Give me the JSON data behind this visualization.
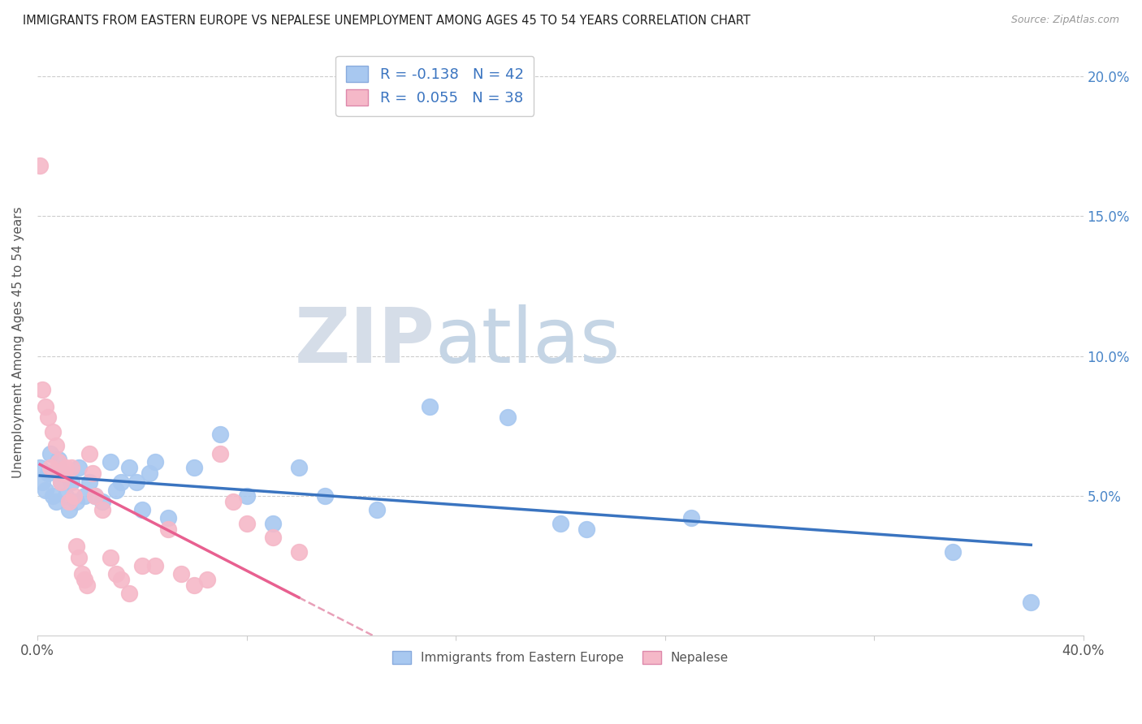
{
  "title": "IMMIGRANTS FROM EASTERN EUROPE VS NEPALESE UNEMPLOYMENT AMONG AGES 45 TO 54 YEARS CORRELATION CHART",
  "source": "Source: ZipAtlas.com",
  "ylabel": "Unemployment Among Ages 45 to 54 years",
  "xlim": [
    0.0,
    0.4
  ],
  "ylim": [
    0.0,
    0.21
  ],
  "yticks": [
    0.05,
    0.1,
    0.15,
    0.2
  ],
  "ytick_labels": [
    "5.0%",
    "10.0%",
    "15.0%",
    "20.0%"
  ],
  "legend_blue_label": "R = -0.138   N = 42",
  "legend_pink_label": "R =  0.055   N = 38",
  "legend_bottom_blue": "Immigrants from Eastern Europe",
  "legend_bottom_pink": "Nepalese",
  "blue_color": "#a8c8f0",
  "pink_color": "#f5b8c8",
  "blue_line_color": "#3a74c0",
  "pink_line_color": "#e86090",
  "pink_dashed_color": "#e8a0b8",
  "blue_x": [
    0.001,
    0.002,
    0.003,
    0.004,
    0.005,
    0.006,
    0.007,
    0.008,
    0.009,
    0.01,
    0.011,
    0.012,
    0.013,
    0.015,
    0.016,
    0.018,
    0.02,
    0.022,
    0.025,
    0.028,
    0.03,
    0.032,
    0.035,
    0.038,
    0.04,
    0.043,
    0.045,
    0.05,
    0.06,
    0.07,
    0.08,
    0.09,
    0.1,
    0.11,
    0.13,
    0.15,
    0.18,
    0.2,
    0.21,
    0.25,
    0.35,
    0.38
  ],
  "blue_y": [
    0.06,
    0.055,
    0.052,
    0.058,
    0.065,
    0.05,
    0.048,
    0.063,
    0.055,
    0.058,
    0.05,
    0.045,
    0.055,
    0.048,
    0.06,
    0.05,
    0.055,
    0.05,
    0.048,
    0.062,
    0.052,
    0.055,
    0.06,
    0.055,
    0.045,
    0.058,
    0.062,
    0.042,
    0.06,
    0.072,
    0.05,
    0.04,
    0.06,
    0.05,
    0.045,
    0.082,
    0.078,
    0.04,
    0.038,
    0.042,
    0.03,
    0.012
  ],
  "pink_x": [
    0.001,
    0.002,
    0.003,
    0.004,
    0.005,
    0.006,
    0.007,
    0.008,
    0.009,
    0.01,
    0.011,
    0.012,
    0.013,
    0.014,
    0.015,
    0.016,
    0.017,
    0.018,
    0.019,
    0.02,
    0.021,
    0.022,
    0.025,
    0.028,
    0.03,
    0.032,
    0.035,
    0.04,
    0.045,
    0.05,
    0.055,
    0.06,
    0.065,
    0.07,
    0.075,
    0.08,
    0.09,
    0.1
  ],
  "pink_y": [
    0.168,
    0.088,
    0.082,
    0.078,
    0.06,
    0.073,
    0.068,
    0.062,
    0.055,
    0.058,
    0.06,
    0.048,
    0.06,
    0.05,
    0.032,
    0.028,
    0.022,
    0.02,
    0.018,
    0.065,
    0.058,
    0.05,
    0.045,
    0.028,
    0.022,
    0.02,
    0.015,
    0.025,
    0.025,
    0.038,
    0.022,
    0.018,
    0.02,
    0.065,
    0.048,
    0.04,
    0.035,
    0.03
  ]
}
